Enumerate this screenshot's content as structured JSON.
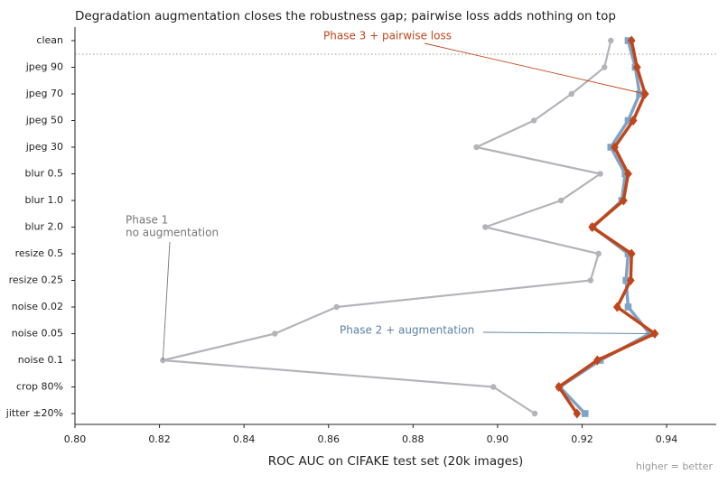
{
  "chart_data": {
    "type": "line",
    "title": "Degradation augmentation closes the robustness gap; pairwise loss adds nothing on top",
    "x_label": "ROC AUC on CIFAKE test set (20k images)",
    "footnote": "higher = better",
    "categories": [
      "clean",
      "jpeg 90",
      "jpeg 70",
      "jpeg 50",
      "jpeg 30",
      "blur 0.5",
      "blur 1.0",
      "blur 2.0",
      "resize 0.5",
      "resize 0.25",
      "noise 0.02",
      "noise 0.05",
      "noise 0.1",
      "crop 80%",
      "jitter ±20%"
    ],
    "xlim": [
      0.8,
      0.951
    ],
    "xticks": [
      {
        "value": 0.8,
        "label": "0.80"
      },
      0.82,
      0.84,
      0.86,
      0.88,
      {
        "value": 0.9,
        "label": "0.90"
      },
      0.92,
      0.94
    ],
    "series": [
      {
        "name": "Phase 1",
        "note": "no augmentation",
        "color": "#b3b3ba",
        "marker": "circle",
        "values": [
          0.9268,
          0.9253,
          0.9175,
          0.9086,
          0.895,
          0.9243,
          0.915,
          0.8971,
          0.9239,
          0.922,
          0.8619,
          0.8473,
          0.8208,
          0.899,
          0.9088
        ]
      },
      {
        "name": "Phase 2  + augmentation",
        "color": "#7fa3c8",
        "marker": "square",
        "values": [
          0.9309,
          0.9326,
          0.9336,
          0.9309,
          0.9268,
          0.9302,
          0.9294,
          0.9226,
          0.9309,
          0.9304,
          0.9309,
          0.936,
          0.9243,
          0.9147,
          0.9207
        ]
      },
      {
        "name": "Phase 3  + pairwise loss",
        "color": "#c0461a",
        "marker": "diamond",
        "values": [
          0.9317,
          0.933,
          0.9349,
          0.9321,
          0.9277,
          0.9309,
          0.9298,
          0.9224,
          0.9317,
          0.9315,
          0.9283,
          0.9372,
          0.9236,
          0.9145,
          0.9188
        ]
      }
    ]
  }
}
